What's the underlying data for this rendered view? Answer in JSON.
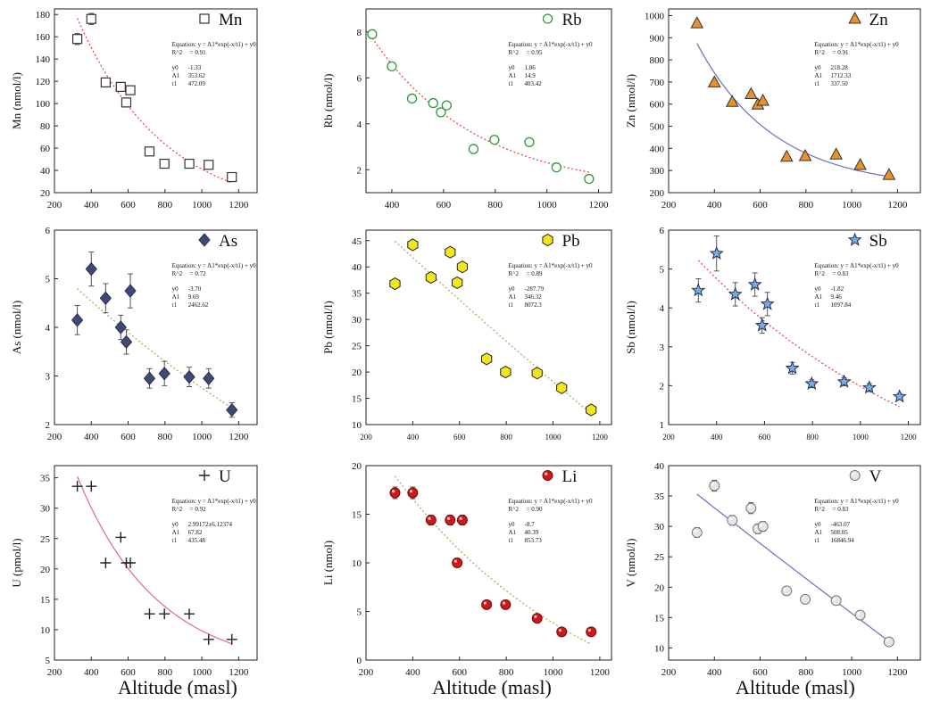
{
  "figure": {
    "x_caption": "Altitude (masl)",
    "eq_label": "Equation: y = A1*exp(-x/t1) + y0",
    "r2_label": "R^2"
  },
  "chart_data": [
    {
      "type": "scatter",
      "title": "Mn",
      "ylabel": "Mn (nmol/l)",
      "xlim": [
        200,
        1300
      ],
      "ylim": [
        20,
        185
      ],
      "yticks": [
        20,
        40,
        60,
        80,
        100,
        120,
        140,
        160,
        180
      ],
      "xticks": [
        200,
        400,
        600,
        800,
        1000,
        1200
      ],
      "marker": "square",
      "marker_color": "#333333",
      "fill": "#ffffff",
      "fit_color": "#e04040",
      "points": [
        {
          "x": 324,
          "y": 158,
          "err": 5
        },
        {
          "x": 400,
          "y": 176,
          "err": 5
        },
        {
          "x": 478,
          "y": 119
        },
        {
          "x": 560,
          "y": 115
        },
        {
          "x": 590,
          "y": 101
        },
        {
          "x": 612,
          "y": 112
        },
        {
          "x": 716,
          "y": 57
        },
        {
          "x": 797,
          "y": 46
        },
        {
          "x": 932,
          "y": 46
        },
        {
          "x": 1037,
          "y": 45
        },
        {
          "x": 1163,
          "y": 34
        }
      ],
      "fit": {
        "y0": -1.33,
        "A1": 353.62,
        "t1": 472.09
      },
      "fit_range": [
        324,
        1163
      ],
      "annot": {
        "r2": "0.91",
        "y0": "-1.33",
        "A1": "353.62",
        "t1": "472.09"
      }
    },
    {
      "type": "scatter",
      "title": "Rb",
      "ylabel": "Rb (nmol/l)",
      "xlim": [
        300,
        1250
      ],
      "ylim": [
        1,
        9
      ],
      "yticks": [
        2,
        4,
        6,
        8
      ],
      "xticks": [
        400,
        600,
        800,
        1000,
        1200
      ],
      "marker": "circle",
      "marker_color": "#2e9a3e",
      "fill": "#ffffff",
      "fit_color": "#e04040",
      "points": [
        {
          "x": 324,
          "y": 7.9
        },
        {
          "x": 400,
          "y": 6.5
        },
        {
          "x": 478,
          "y": 5.1
        },
        {
          "x": 560,
          "y": 4.9
        },
        {
          "x": 590,
          "y": 4.5
        },
        {
          "x": 612,
          "y": 4.8
        },
        {
          "x": 716,
          "y": 2.9
        },
        {
          "x": 797,
          "y": 3.3
        },
        {
          "x": 932,
          "y": 3.2
        },
        {
          "x": 1037,
          "y": 2.1
        },
        {
          "x": 1163,
          "y": 1.6
        }
      ],
      "fit": {
        "y0": 1.06,
        "A1": 14.9,
        "t1": 403.42
      },
      "fit_range": [
        324,
        1163
      ],
      "annot": {
        "r2": "0.95",
        "y0": "1.06",
        "A1": "14.9",
        "t1": "403.42"
      }
    },
    {
      "type": "scatter",
      "title": "Zn",
      "ylabel": "Zn (nmol/l)",
      "xlim": [
        200,
        1300
      ],
      "ylim": [
        200,
        1030
      ],
      "yticks": [
        200,
        300,
        400,
        500,
        600,
        700,
        800,
        900,
        1000
      ],
      "xticks": [
        200,
        400,
        600,
        800,
        1000,
        1200
      ],
      "marker": "triangle",
      "marker_color": "#333333",
      "fill": "#e8922e",
      "fit_color": "#6a6fbf",
      "points": [
        {
          "x": 324,
          "y": 965
        },
        {
          "x": 400,
          "y": 698
        },
        {
          "x": 478,
          "y": 610
        },
        {
          "x": 560,
          "y": 645
        },
        {
          "x": 590,
          "y": 598
        },
        {
          "x": 612,
          "y": 615
        },
        {
          "x": 716,
          "y": 362
        },
        {
          "x": 797,
          "y": 365
        },
        {
          "x": 932,
          "y": 372
        },
        {
          "x": 1037,
          "y": 325
        },
        {
          "x": 1163,
          "y": 280
        }
      ],
      "fit": {
        "y0": 218.28,
        "A1": 1712.33,
        "t1": 337.5
      },
      "fit_range": [
        324,
        1163
      ],
      "annot": {
        "r2": "0.91",
        "y0": "218.28",
        "A1": "1712.33",
        "t1": "337.50"
      }
    },
    {
      "type": "scatter",
      "title": "As",
      "ylabel": "As (nmol/l)",
      "xlim": [
        200,
        1300
      ],
      "ylim": [
        2,
        6
      ],
      "yticks": [
        2,
        3,
        4,
        5,
        6
      ],
      "xticks": [
        200,
        400,
        600,
        800,
        1000,
        1200
      ],
      "marker": "diamond",
      "marker_color": "#2a2e55",
      "fill": "#3f4a72",
      "fit_color": "#9ab04a",
      "points": [
        {
          "x": 324,
          "y": 4.15,
          "err": 0.3
        },
        {
          "x": 400,
          "y": 5.2,
          "err": 0.35
        },
        {
          "x": 478,
          "y": 4.6,
          "err": 0.3
        },
        {
          "x": 560,
          "y": 4.0,
          "err": 0.25
        },
        {
          "x": 590,
          "y": 3.7,
          "err": 0.25
        },
        {
          "x": 612,
          "y": 4.75,
          "err": 0.35
        },
        {
          "x": 716,
          "y": 2.95,
          "err": 0.2
        },
        {
          "x": 797,
          "y": 3.05,
          "err": 0.25
        },
        {
          "x": 932,
          "y": 2.98,
          "err": 0.2
        },
        {
          "x": 1037,
          "y": 2.95,
          "err": 0.2
        },
        {
          "x": 1163,
          "y": 2.3,
          "err": 0.15
        }
      ],
      "fit": {
        "y0": -3.7,
        "A1": 9.69,
        "t1": 2462.62
      },
      "fit_range": [
        324,
        1163
      ],
      "annot": {
        "r2": "0.72",
        "y0": "-3.70",
        "A1": "9.69",
        "t1": "2462.62"
      }
    },
    {
      "type": "scatter",
      "title": "Pb",
      "ylabel": "Pb (nmol/l)",
      "xlim": [
        200,
        1250
      ],
      "ylim": [
        10,
        47
      ],
      "yticks": [
        10,
        15,
        20,
        25,
        30,
        35,
        40,
        45
      ],
      "xticks": [
        200,
        400,
        600,
        800,
        1000,
        1200
      ],
      "marker": "hexagon",
      "marker_color": "#222222",
      "fill": "#f2e61a",
      "fit_color": "#9ab04a",
      "points": [
        {
          "x": 324,
          "y": 36.8
        },
        {
          "x": 400,
          "y": 44.2
        },
        {
          "x": 478,
          "y": 38.0
        },
        {
          "x": 560,
          "y": 42.8
        },
        {
          "x": 590,
          "y": 37.0
        },
        {
          "x": 612,
          "y": 40.0
        },
        {
          "x": 716,
          "y": 22.5
        },
        {
          "x": 797,
          "y": 20.0
        },
        {
          "x": 932,
          "y": 19.8
        },
        {
          "x": 1037,
          "y": 17.0
        },
        {
          "x": 1163,
          "y": 12.8
        }
      ],
      "fit": {
        "y0": -287.79,
        "A1": 346.32,
        "t1": 8072.3
      },
      "fit_range": [
        324,
        1163
      ],
      "annot": {
        "r2": "0.89",
        "y0": "-287.79",
        "A1": "346.32",
        "t1": "8072.3"
      }
    },
    {
      "type": "scatter",
      "title": "Sb",
      "ylabel": "Sb (nmol/l)",
      "xlim": [
        200,
        1250
      ],
      "ylim": [
        1,
        6
      ],
      "yticks": [
        1,
        2,
        3,
        4,
        5,
        6
      ],
      "xticks": [
        200,
        400,
        600,
        800,
        1000,
        1200
      ],
      "marker": "star",
      "marker_color": "#1e2e55",
      "fill": "#7aaee0",
      "fit_color": "#e04040",
      "points": [
        {
          "x": 324,
          "y": 4.45,
          "err": 0.3
        },
        {
          "x": 400,
          "y": 5.4,
          "err": 0.45
        },
        {
          "x": 478,
          "y": 4.35,
          "err": 0.3
        },
        {
          "x": 560,
          "y": 4.6,
          "err": 0.3
        },
        {
          "x": 590,
          "y": 3.55,
          "err": 0.2
        },
        {
          "x": 612,
          "y": 4.1,
          "err": 0.3
        },
        {
          "x": 716,
          "y": 2.45,
          "err": 0.15
        },
        {
          "x": 797,
          "y": 2.05,
          "err": 0.1
        },
        {
          "x": 932,
          "y": 2.1,
          "err": 0.1
        },
        {
          "x": 1037,
          "y": 1.95,
          "err": 0.1
        },
        {
          "x": 1163,
          "y": 1.72,
          "err": 0.08
        }
      ],
      "fit": {
        "y0": -1.82,
        "A1": 9.46,
        "t1": 1097.84
      },
      "fit_range": [
        324,
        1163
      ],
      "annot": {
        "r2": "0.83",
        "y0": "-1.82",
        "A1": "9.46",
        "t1": "1097.84"
      }
    },
    {
      "type": "scatter",
      "title": "U",
      "ylabel": "U (pmol/l)",
      "xlim": [
        200,
        1300
      ],
      "ylim": [
        5,
        37
      ],
      "yticks": [
        5,
        10,
        15,
        20,
        25,
        30,
        35
      ],
      "xticks": [
        200,
        400,
        600,
        800,
        1000,
        1200
      ],
      "marker": "plus",
      "marker_color": "#222222",
      "fill": "#222222",
      "fit_color": "#e06a8a",
      "points": [
        {
          "x": 324,
          "y": 33.6
        },
        {
          "x": 400,
          "y": 33.6
        },
        {
          "x": 478,
          "y": 21.0
        },
        {
          "x": 560,
          "y": 25.2
        },
        {
          "x": 590,
          "y": 21.0
        },
        {
          "x": 612,
          "y": 21.0
        },
        {
          "x": 716,
          "y": 12.6
        },
        {
          "x": 797,
          "y": 12.6
        },
        {
          "x": 932,
          "y": 12.6
        },
        {
          "x": 1037,
          "y": 8.4
        },
        {
          "x": 1163,
          "y": 8.4
        }
      ],
      "fit": {
        "y0": 2.99172,
        "A1": 67.82,
        "t1": 435.48
      },
      "fit_range": [
        324,
        1163
      ],
      "annot": {
        "r2": "0.92",
        "y0": "2.99172±6.12374",
        "A1": "67.82",
        "t1": "435.48"
      }
    },
    {
      "type": "scatter",
      "title": "Li",
      "ylabel": "Li (nmol)",
      "xlim": [
        200,
        1250
      ],
      "ylim": [
        0,
        20
      ],
      "yticks": [
        0,
        5,
        10,
        15,
        20
      ],
      "xticks": [
        200,
        400,
        600,
        800,
        1000,
        1200
      ],
      "marker": "ball",
      "marker_color": "#7a0a0a",
      "fill": "#cc1a1a",
      "fit_color": "#9ab04a",
      "points": [
        {
          "x": 324,
          "y": 17.2,
          "err": 0.6
        },
        {
          "x": 400,
          "y": 17.2,
          "err": 0.6
        },
        {
          "x": 478,
          "y": 14.4,
          "err": 0.5
        },
        {
          "x": 560,
          "y": 14.4,
          "err": 0.5
        },
        {
          "x": 590,
          "y": 10.0
        },
        {
          "x": 612,
          "y": 14.4,
          "err": 0.5
        },
        {
          "x": 716,
          "y": 5.7
        },
        {
          "x": 797,
          "y": 5.7
        },
        {
          "x": 932,
          "y": 4.3
        },
        {
          "x": 1037,
          "y": 2.9
        },
        {
          "x": 1163,
          "y": 2.9
        }
      ],
      "fit": {
        "y0": -8.7,
        "A1": 40.39,
        "t1": 853.73
      },
      "fit_range": [
        324,
        1163
      ],
      "annot": {
        "r2": "0.90",
        "y0": "-8.7",
        "A1": "40.39",
        "t1": "853.73"
      }
    },
    {
      "type": "scatter",
      "title": "V",
      "ylabel": "V (nmol/l)",
      "xlim": [
        200,
        1300
      ],
      "ylim": [
        8,
        40
      ],
      "yticks": [
        10,
        15,
        20,
        25,
        30,
        35,
        40
      ],
      "xticks": [
        200,
        400,
        600,
        800,
        1000,
        1200
      ],
      "marker": "ball",
      "marker_color": "#777777",
      "fill": "#e6e6e6",
      "fit_color": "#6a6fbf",
      "points": [
        {
          "x": 324,
          "y": 29.0,
          "err": 0.8
        },
        {
          "x": 400,
          "y": 36.7,
          "err": 0.9
        },
        {
          "x": 478,
          "y": 31.0,
          "err": 0.8
        },
        {
          "x": 560,
          "y": 33.0,
          "err": 0.9
        },
        {
          "x": 590,
          "y": 29.6,
          "err": 0.8
        },
        {
          "x": 612,
          "y": 30.0,
          "err": 0.8
        },
        {
          "x": 716,
          "y": 19.4,
          "err": 0.6
        },
        {
          "x": 797,
          "y": 18.0,
          "err": 0.6
        },
        {
          "x": 932,
          "y": 17.8,
          "err": 0.6
        },
        {
          "x": 1037,
          "y": 15.4,
          "err": 0.6
        },
        {
          "x": 1163,
          "y": 11.0,
          "err": 0.5
        }
      ],
      "fit": {
        "y0": -463.07,
        "A1": 508.05,
        "t1": 16846.94
      },
      "fit_range": [
        324,
        1163
      ],
      "annot": {
        "r2": "0.83",
        "y0": "-463.07",
        "A1": "508.05",
        "t1": "16846.94"
      }
    }
  ]
}
